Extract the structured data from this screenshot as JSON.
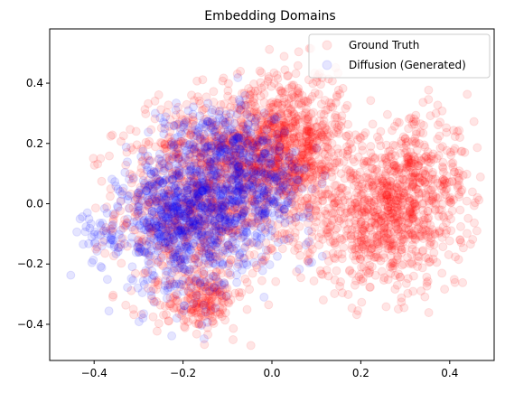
{
  "chart_data": {
    "type": "scatter",
    "title": "Embedding Domains",
    "xlabel": "",
    "ylabel": "",
    "xlim": [
      -0.5,
      0.5
    ],
    "ylim": [
      -0.52,
      0.58
    ],
    "xticks": [
      -0.4,
      -0.2,
      0.0,
      0.2,
      0.4
    ],
    "xtick_labels": [
      "−0.4",
      "−0.2",
      "0.0",
      "0.2",
      "0.4"
    ],
    "yticks": [
      -0.4,
      -0.2,
      0.0,
      0.2,
      0.4
    ],
    "ytick_labels": [
      "−0.4",
      "−0.2",
      "0.0",
      "0.2",
      "0.4"
    ],
    "grid": false,
    "legend_position": "top-right",
    "marker_alpha": 0.1,
    "series": [
      {
        "name": "Ground Truth",
        "color": "#ff0000",
        "clusters": [
          {
            "cx": -0.17,
            "cy": -0.02,
            "sx": 0.09,
            "sy": 0.15,
            "n": 850
          },
          {
            "cx": -0.05,
            "cy": 0.2,
            "sx": 0.1,
            "sy": 0.1,
            "n": 500
          },
          {
            "cx": 0.05,
            "cy": 0.18,
            "sx": 0.06,
            "sy": 0.14,
            "n": 650
          },
          {
            "cx": 0.25,
            "cy": -0.05,
            "sx": 0.09,
            "sy": 0.12,
            "n": 750
          },
          {
            "cx": 0.33,
            "cy": 0.08,
            "sx": 0.06,
            "sy": 0.1,
            "n": 300
          },
          {
            "cx": -0.16,
            "cy": -0.33,
            "sx": 0.04,
            "sy": 0.04,
            "n": 180
          }
        ]
      },
      {
        "name": "Diffusion (Generated)",
        "color": "#0000ff",
        "clusters": [
          {
            "cx": -0.2,
            "cy": -0.06,
            "sx": 0.07,
            "sy": 0.12,
            "n": 800
          },
          {
            "cx": -0.05,
            "cy": 0.05,
            "sx": 0.07,
            "sy": 0.09,
            "n": 450
          },
          {
            "cx": -0.12,
            "cy": 0.22,
            "sx": 0.06,
            "sy": 0.06,
            "n": 180
          },
          {
            "cx": -0.38,
            "cy": -0.1,
            "sx": 0.03,
            "sy": 0.04,
            "n": 40
          }
        ]
      }
    ]
  }
}
